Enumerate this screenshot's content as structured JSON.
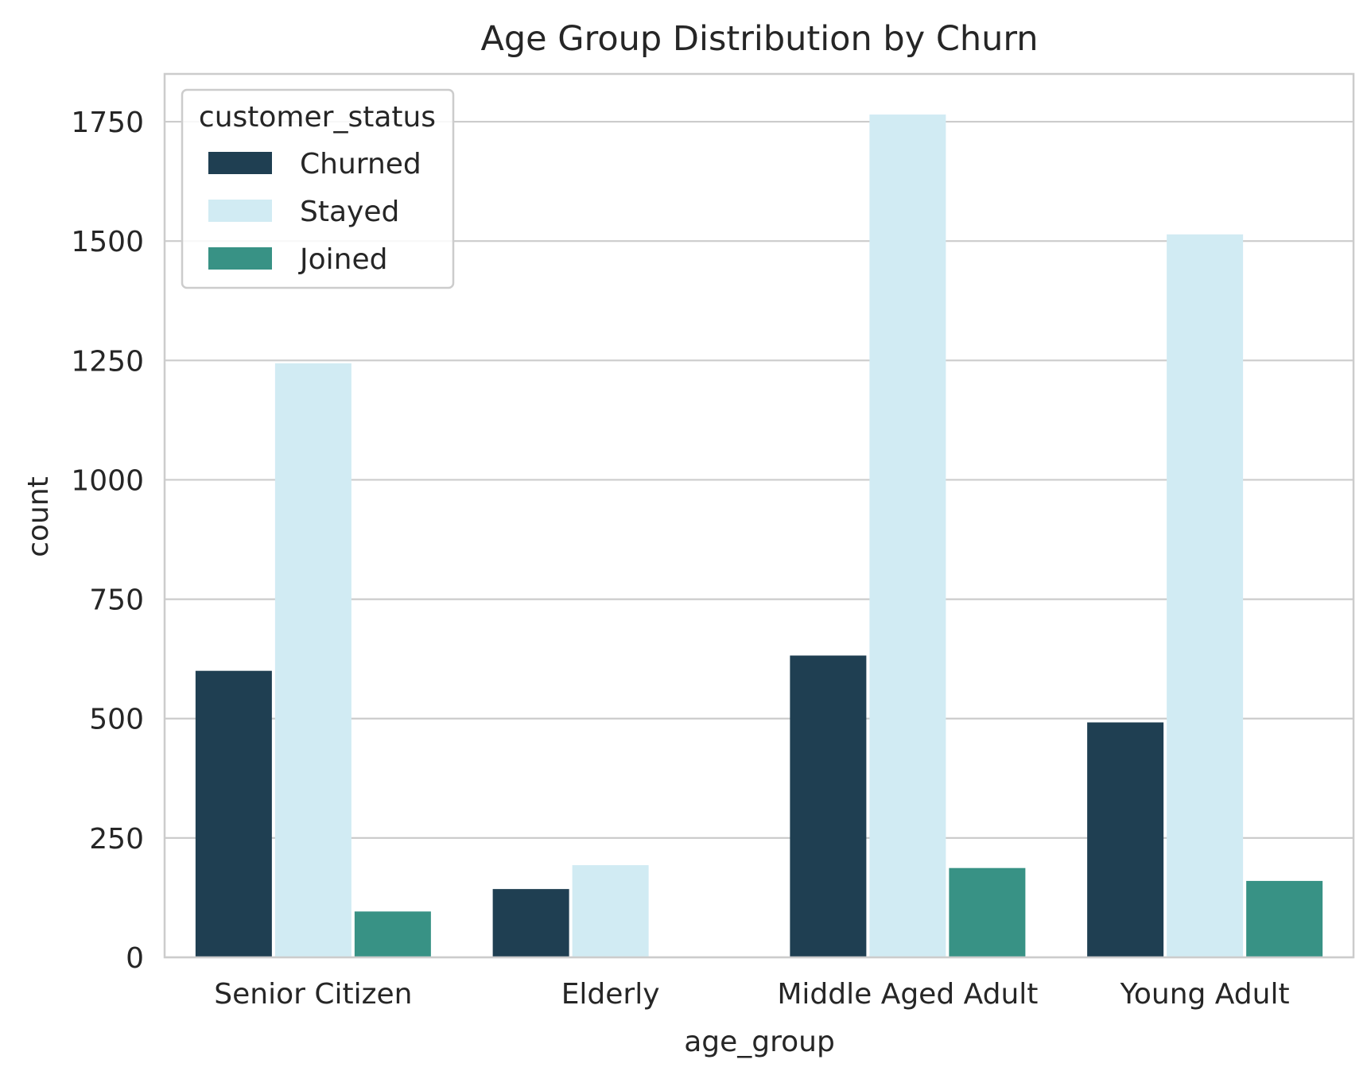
{
  "chart_data": {
    "type": "bar",
    "title": "Age Group Distribution by Churn",
    "xlabel": "age_group",
    "ylabel": "count",
    "categories": [
      "Senior Citizen",
      "Elderly",
      "Middle Aged Adult",
      "Young Adult"
    ],
    "series": [
      {
        "name": "Churned",
        "color": "#1f3f52",
        "values": [
          600,
          143,
          632,
          492
        ]
      },
      {
        "name": "Stayed",
        "color": "#d1ebf3",
        "values": [
          1244,
          193,
          1765,
          1514
        ]
      },
      {
        "name": "Joined",
        "color": "#389285",
        "values": [
          96,
          0,
          187,
          160
        ]
      }
    ],
    "ylim": [
      0,
      1850
    ],
    "yticks": [
      0,
      250,
      500,
      750,
      1000,
      1250,
      1500,
      1750
    ],
    "grid": "horizontal",
    "legend": {
      "title": "customer_status",
      "placement": "top-left"
    }
  }
}
